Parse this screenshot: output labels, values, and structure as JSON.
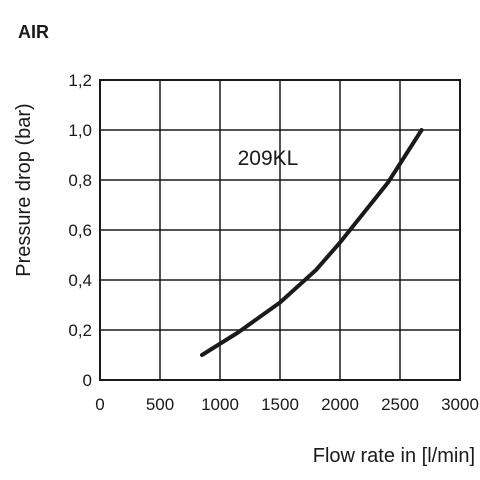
{
  "header": "AIR",
  "chart_data": {
    "type": "line",
    "title": "",
    "xlabel": "Flow rate in [l/min]",
    "ylabel": "Pressure drop (bar)",
    "xlim": [
      0,
      3000
    ],
    "ylim": [
      0,
      1.2
    ],
    "x_ticks": [
      0,
      500,
      1000,
      1500,
      2000,
      2500,
      3000
    ],
    "x_tick_labels": [
      "0",
      "500",
      "1000",
      "1500",
      "2000",
      "2500",
      "3000"
    ],
    "y_ticks": [
      0,
      0.2,
      0.4,
      0.6,
      0.8,
      1.0,
      1.2
    ],
    "y_tick_labels": [
      "0",
      "0,2",
      "0,4",
      "0,6",
      "0,8",
      "1,0",
      "1,2"
    ],
    "grid": true,
    "series": [
      {
        "name": "209KL",
        "color": "#1a1a1a",
        "x": [
          850,
          1150,
          1500,
          1800,
          2000,
          2200,
          2400,
          2680
        ],
        "y": [
          0.1,
          0.19,
          0.31,
          0.44,
          0.55,
          0.67,
          0.79,
          1.0
        ]
      }
    ]
  }
}
